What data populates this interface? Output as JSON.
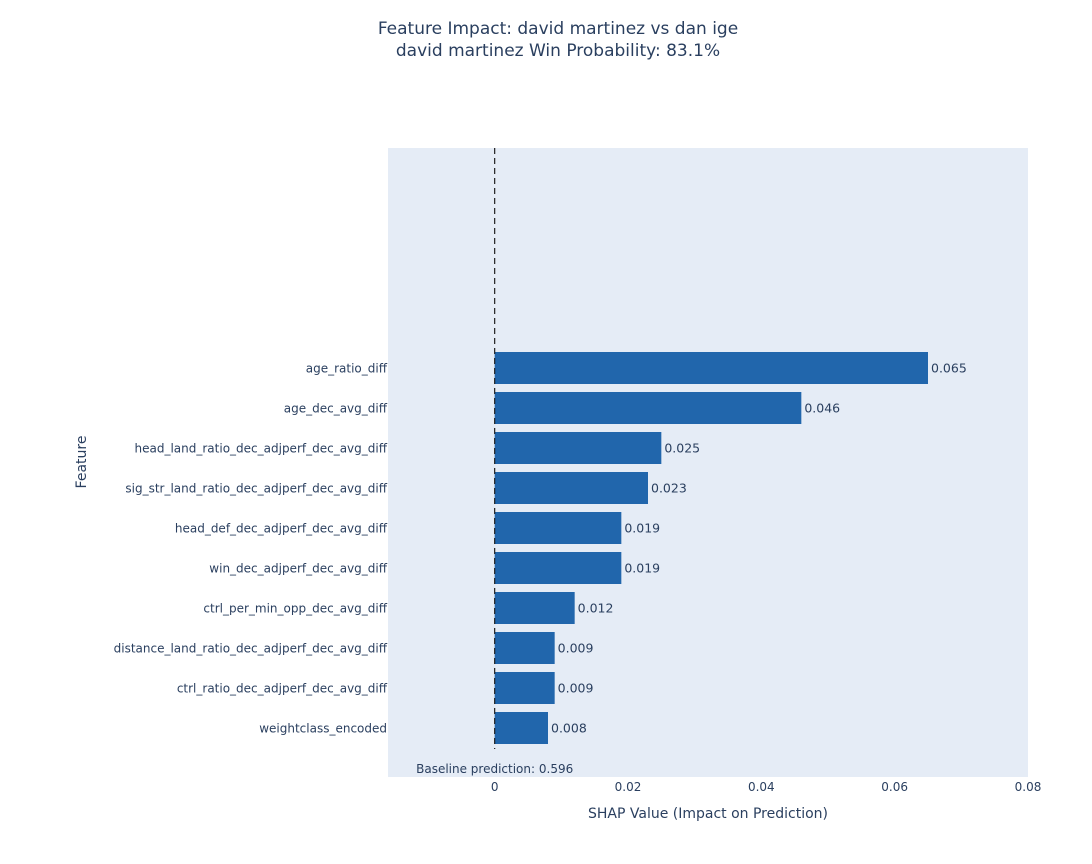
{
  "chart_data": {
    "type": "bar",
    "orientation": "horizontal",
    "title": "Feature Impact: david martinez vs dan ige",
    "subtitle": "david martinez Win Probability: 83.1%",
    "xlabel": "SHAP Value (Impact on Prediction)",
    "ylabel": "Feature",
    "xlim": [
      -0.016,
      0.08
    ],
    "x_ticks": [
      0,
      0.02,
      0.04,
      0.06,
      0.08
    ],
    "x_tick_labels": [
      "0",
      "0.02",
      "0.04",
      "0.06",
      "0.08"
    ],
    "grid": false,
    "categories": [
      "age_ratio_diff",
      "age_dec_avg_diff",
      "head_land_ratio_dec_adjperf_dec_avg_diff",
      "sig_str_land_ratio_dec_adjperf_dec_avg_diff",
      "head_def_dec_adjperf_dec_avg_diff",
      "win_dec_adjperf_dec_avg_diff",
      "ctrl_per_min_opp_dec_avg_diff",
      "distance_land_ratio_dec_adjperf_dec_avg_diff",
      "ctrl_ratio_dec_adjperf_dec_avg_diff",
      "weightclass_encoded"
    ],
    "values": [
      0.065,
      0.046,
      0.025,
      0.023,
      0.019,
      0.019,
      0.012,
      0.009,
      0.009,
      0.008
    ],
    "value_labels": [
      "0.065",
      "0.046",
      "0.025",
      "0.023",
      "0.019",
      "0.019",
      "0.012",
      "0.009",
      "0.009",
      "0.008"
    ],
    "baseline_line_x": 0,
    "annotation": "Baseline prediction: 0.596",
    "colors": {
      "bar": "#2166ac",
      "plot_bg": "#e5ecf6",
      "text": "#2a3f5f",
      "baseline_line": "#1f1f1f"
    }
  }
}
